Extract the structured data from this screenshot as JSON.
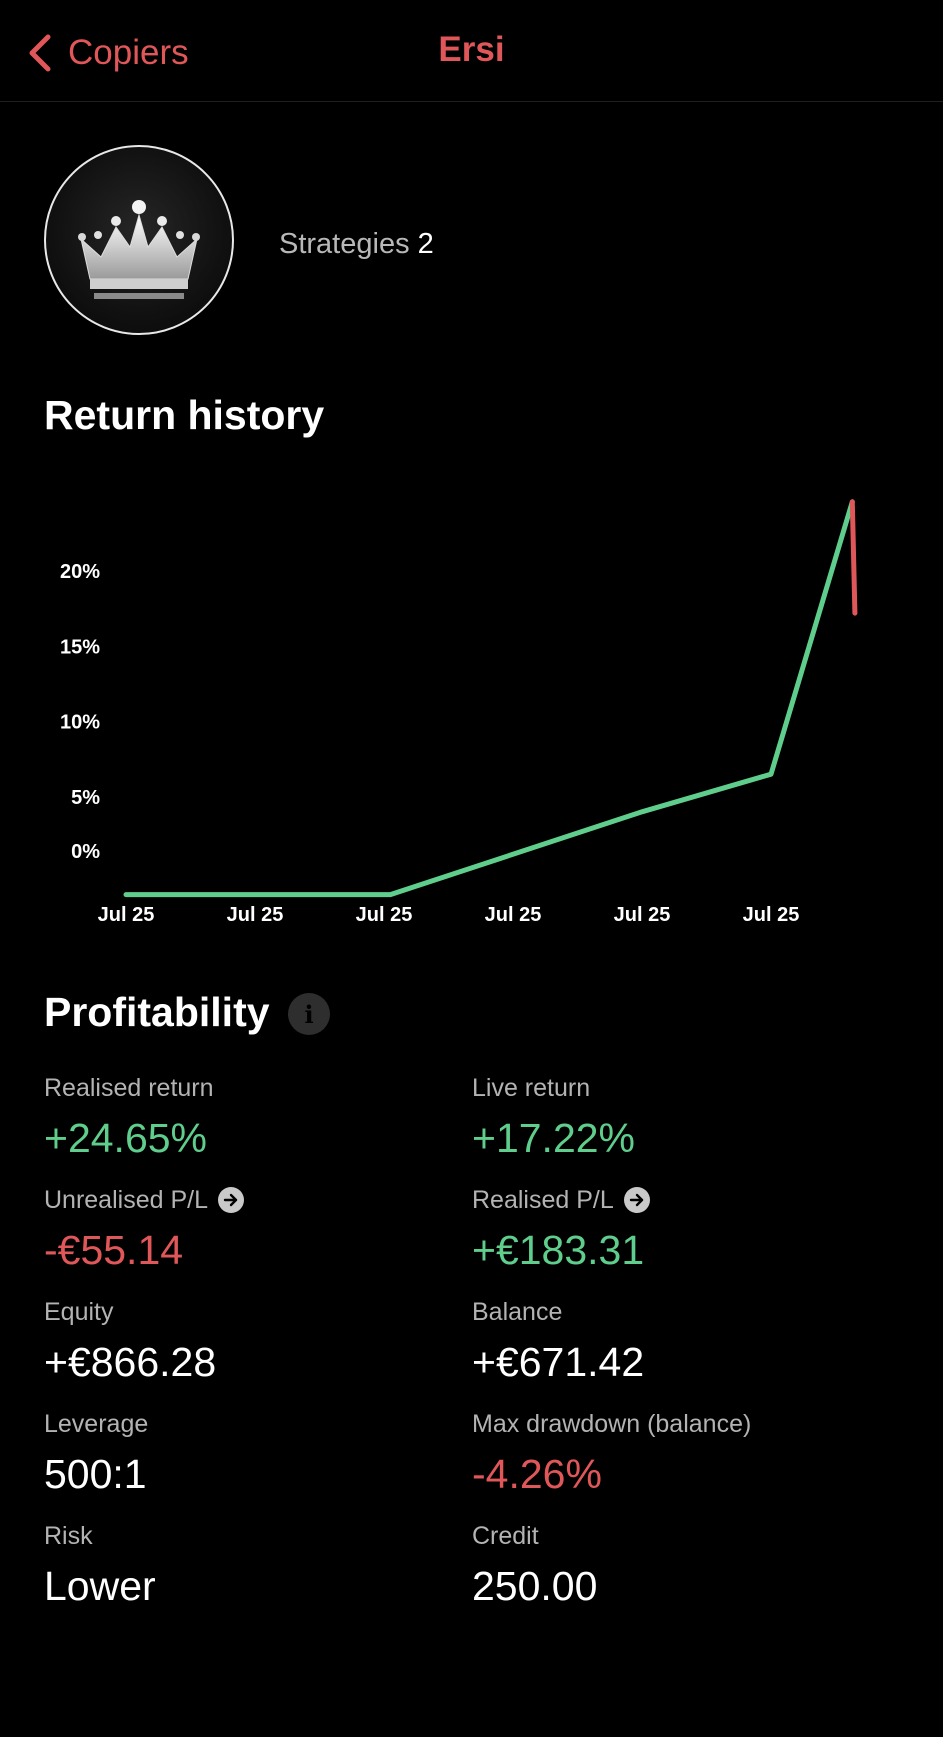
{
  "nav": {
    "back_label": "Copiers",
    "title": "Ersi",
    "accent": "#e0575a"
  },
  "profile": {
    "strategies_label": "Strategies",
    "strategies_count": "2",
    "avatar_icon": "crown-icon"
  },
  "return_history": {
    "title": "Return history"
  },
  "chart_data": {
    "type": "line",
    "title": "",
    "xlabel": "",
    "ylabel": "",
    "y_ticks": [
      {
        "value": 0,
        "label": "0%"
      },
      {
        "value": 5,
        "label": "5%"
      },
      {
        "value": 10,
        "label": "10%"
      },
      {
        "value": 15,
        "label": "15%"
      },
      {
        "value": 20,
        "label": "20%"
      }
    ],
    "x_ticks": [
      "Jul 25",
      "Jul 25",
      "Jul 25",
      "Jul 25",
      "Jul 25",
      "Jul 25"
    ],
    "ylim": [
      -1.5,
      25
    ],
    "xlim": [
      0,
      5.65
    ],
    "grid": false,
    "series": [
      {
        "color": "#5fce8d",
        "points": [
          {
            "x": 0,
            "y": -1.5
          },
          {
            "x": 2.05,
            "y": -1.5
          },
          {
            "x": 4,
            "y": 4.0
          },
          {
            "x": 5,
            "y": 6.5
          },
          {
            "x": 5.63,
            "y": 24.6
          }
        ]
      },
      {
        "color": "#e0575a",
        "points": [
          {
            "x": 5.63,
            "y": 24.6
          },
          {
            "x": 5.65,
            "y": 17.2
          }
        ]
      }
    ]
  },
  "profitability": {
    "title": "Profitability",
    "info_icon": "info-icon",
    "metrics": [
      {
        "label": "Realised return",
        "value": "+24.65%",
        "tone": "pos"
      },
      {
        "label": "Live return",
        "value": "+17.22%",
        "tone": "pos"
      },
      {
        "label": "Unrealised P/L",
        "value": "-€55.14",
        "tone": "neg",
        "icon": "arrow-right-icon"
      },
      {
        "label": "Realised P/L",
        "value": "+€183.31",
        "tone": "pos",
        "icon": "arrow-right-icon"
      },
      {
        "label": "Equity",
        "value": "+€866.28",
        "tone": "neu"
      },
      {
        "label": "Balance",
        "value": "+€671.42",
        "tone": "neu"
      },
      {
        "label": "Leverage",
        "value": "500:1",
        "tone": "neu"
      },
      {
        "label": "Max drawdown (balance)",
        "value": "-4.26%",
        "tone": "neg"
      },
      {
        "label": "Risk",
        "value": "Lower",
        "tone": "neu"
      },
      {
        "label": "Credit",
        "value": "250.00",
        "tone": "neu"
      }
    ]
  }
}
